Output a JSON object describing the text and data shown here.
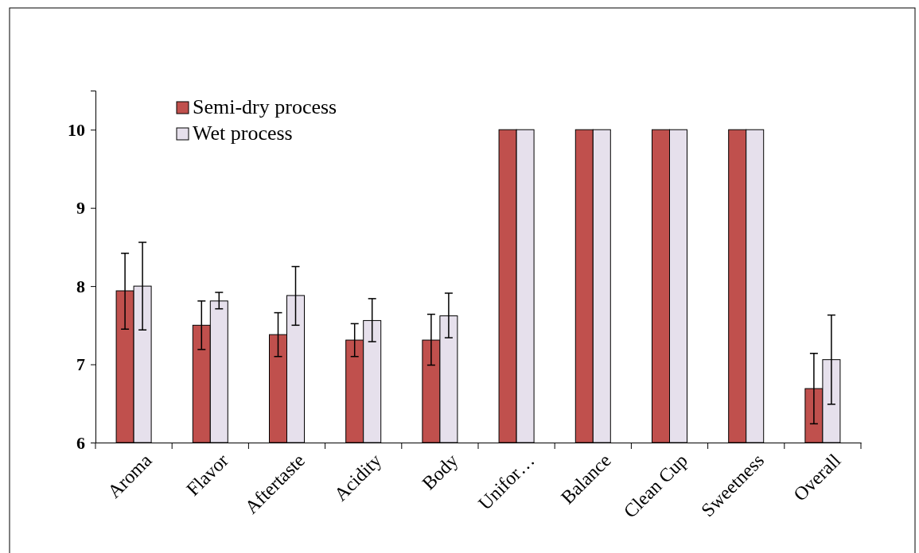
{
  "chart_data": {
    "type": "bar",
    "categories": [
      "Aroma",
      "Flavor",
      "Aftertaste",
      "Acidity",
      "Body",
      "Unifor…",
      "Balance",
      "Clean Cup",
      "Sweetness",
      "Overall"
    ],
    "series": [
      {
        "name": "Semi-dry process",
        "color": "#c0504d",
        "values": [
          7.94,
          7.5,
          7.38,
          7.31,
          7.31,
          10,
          10,
          10,
          10,
          6.69
        ],
        "errors": [
          [
            7.45,
            8.42
          ],
          [
            7.19,
            7.81
          ],
          [
            7.1,
            7.66
          ],
          [
            7.1,
            7.52
          ],
          [
            6.99,
            7.64
          ],
          null,
          null,
          null,
          null,
          [
            6.24,
            7.14
          ]
        ]
      },
      {
        "name": "Wet process",
        "color": "#e6e0ec",
        "values": [
          8.0,
          7.81,
          7.88,
          7.56,
          7.62,
          10,
          10,
          10,
          10,
          7.06
        ],
        "errors": [
          [
            7.44,
            8.56
          ],
          [
            7.71,
            7.92
          ],
          [
            7.5,
            8.25
          ],
          [
            7.29,
            7.84
          ],
          [
            7.34,
            7.91
          ],
          null,
          null,
          null,
          null,
          [
            6.49,
            7.63
          ]
        ]
      }
    ],
    "ylim": [
      6,
      10.5
    ],
    "yticks": [
      6,
      7,
      8,
      9,
      10
    ],
    "legend": "top left"
  }
}
